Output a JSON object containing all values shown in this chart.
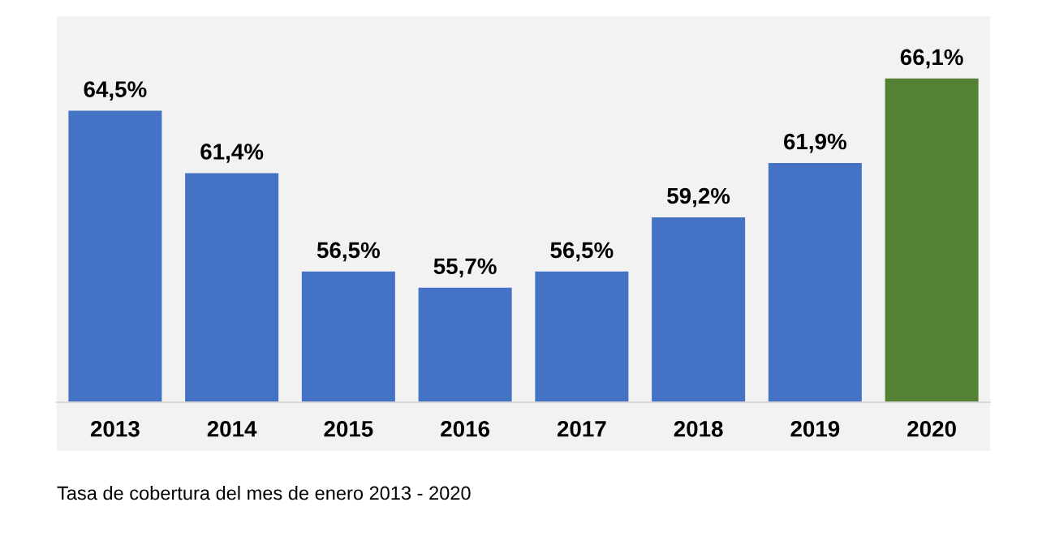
{
  "chart_data": {
    "type": "bar",
    "categories": [
      "2013",
      "2014",
      "2015",
      "2016",
      "2017",
      "2018",
      "2019",
      "2020"
    ],
    "values": [
      64.5,
      61.4,
      56.5,
      55.7,
      56.5,
      59.2,
      61.9,
      66.1
    ],
    "colors": [
      "#4472c4",
      "#4472c4",
      "#4472c4",
      "#4472c4",
      "#4472c4",
      "#4472c4",
      "#4472c4",
      "#548235"
    ],
    "value_labels": [
      "64,5%",
      "61,4%",
      "56,5%",
      "55,7%",
      "56,5%",
      "59,2%",
      "61,9%",
      "66,1%"
    ],
    "ylim": [
      50,
      69.2
    ],
    "legend": false,
    "annotations": [
      "Tasa de cobertura del mes de enero 2013 - 2020"
    ]
  }
}
